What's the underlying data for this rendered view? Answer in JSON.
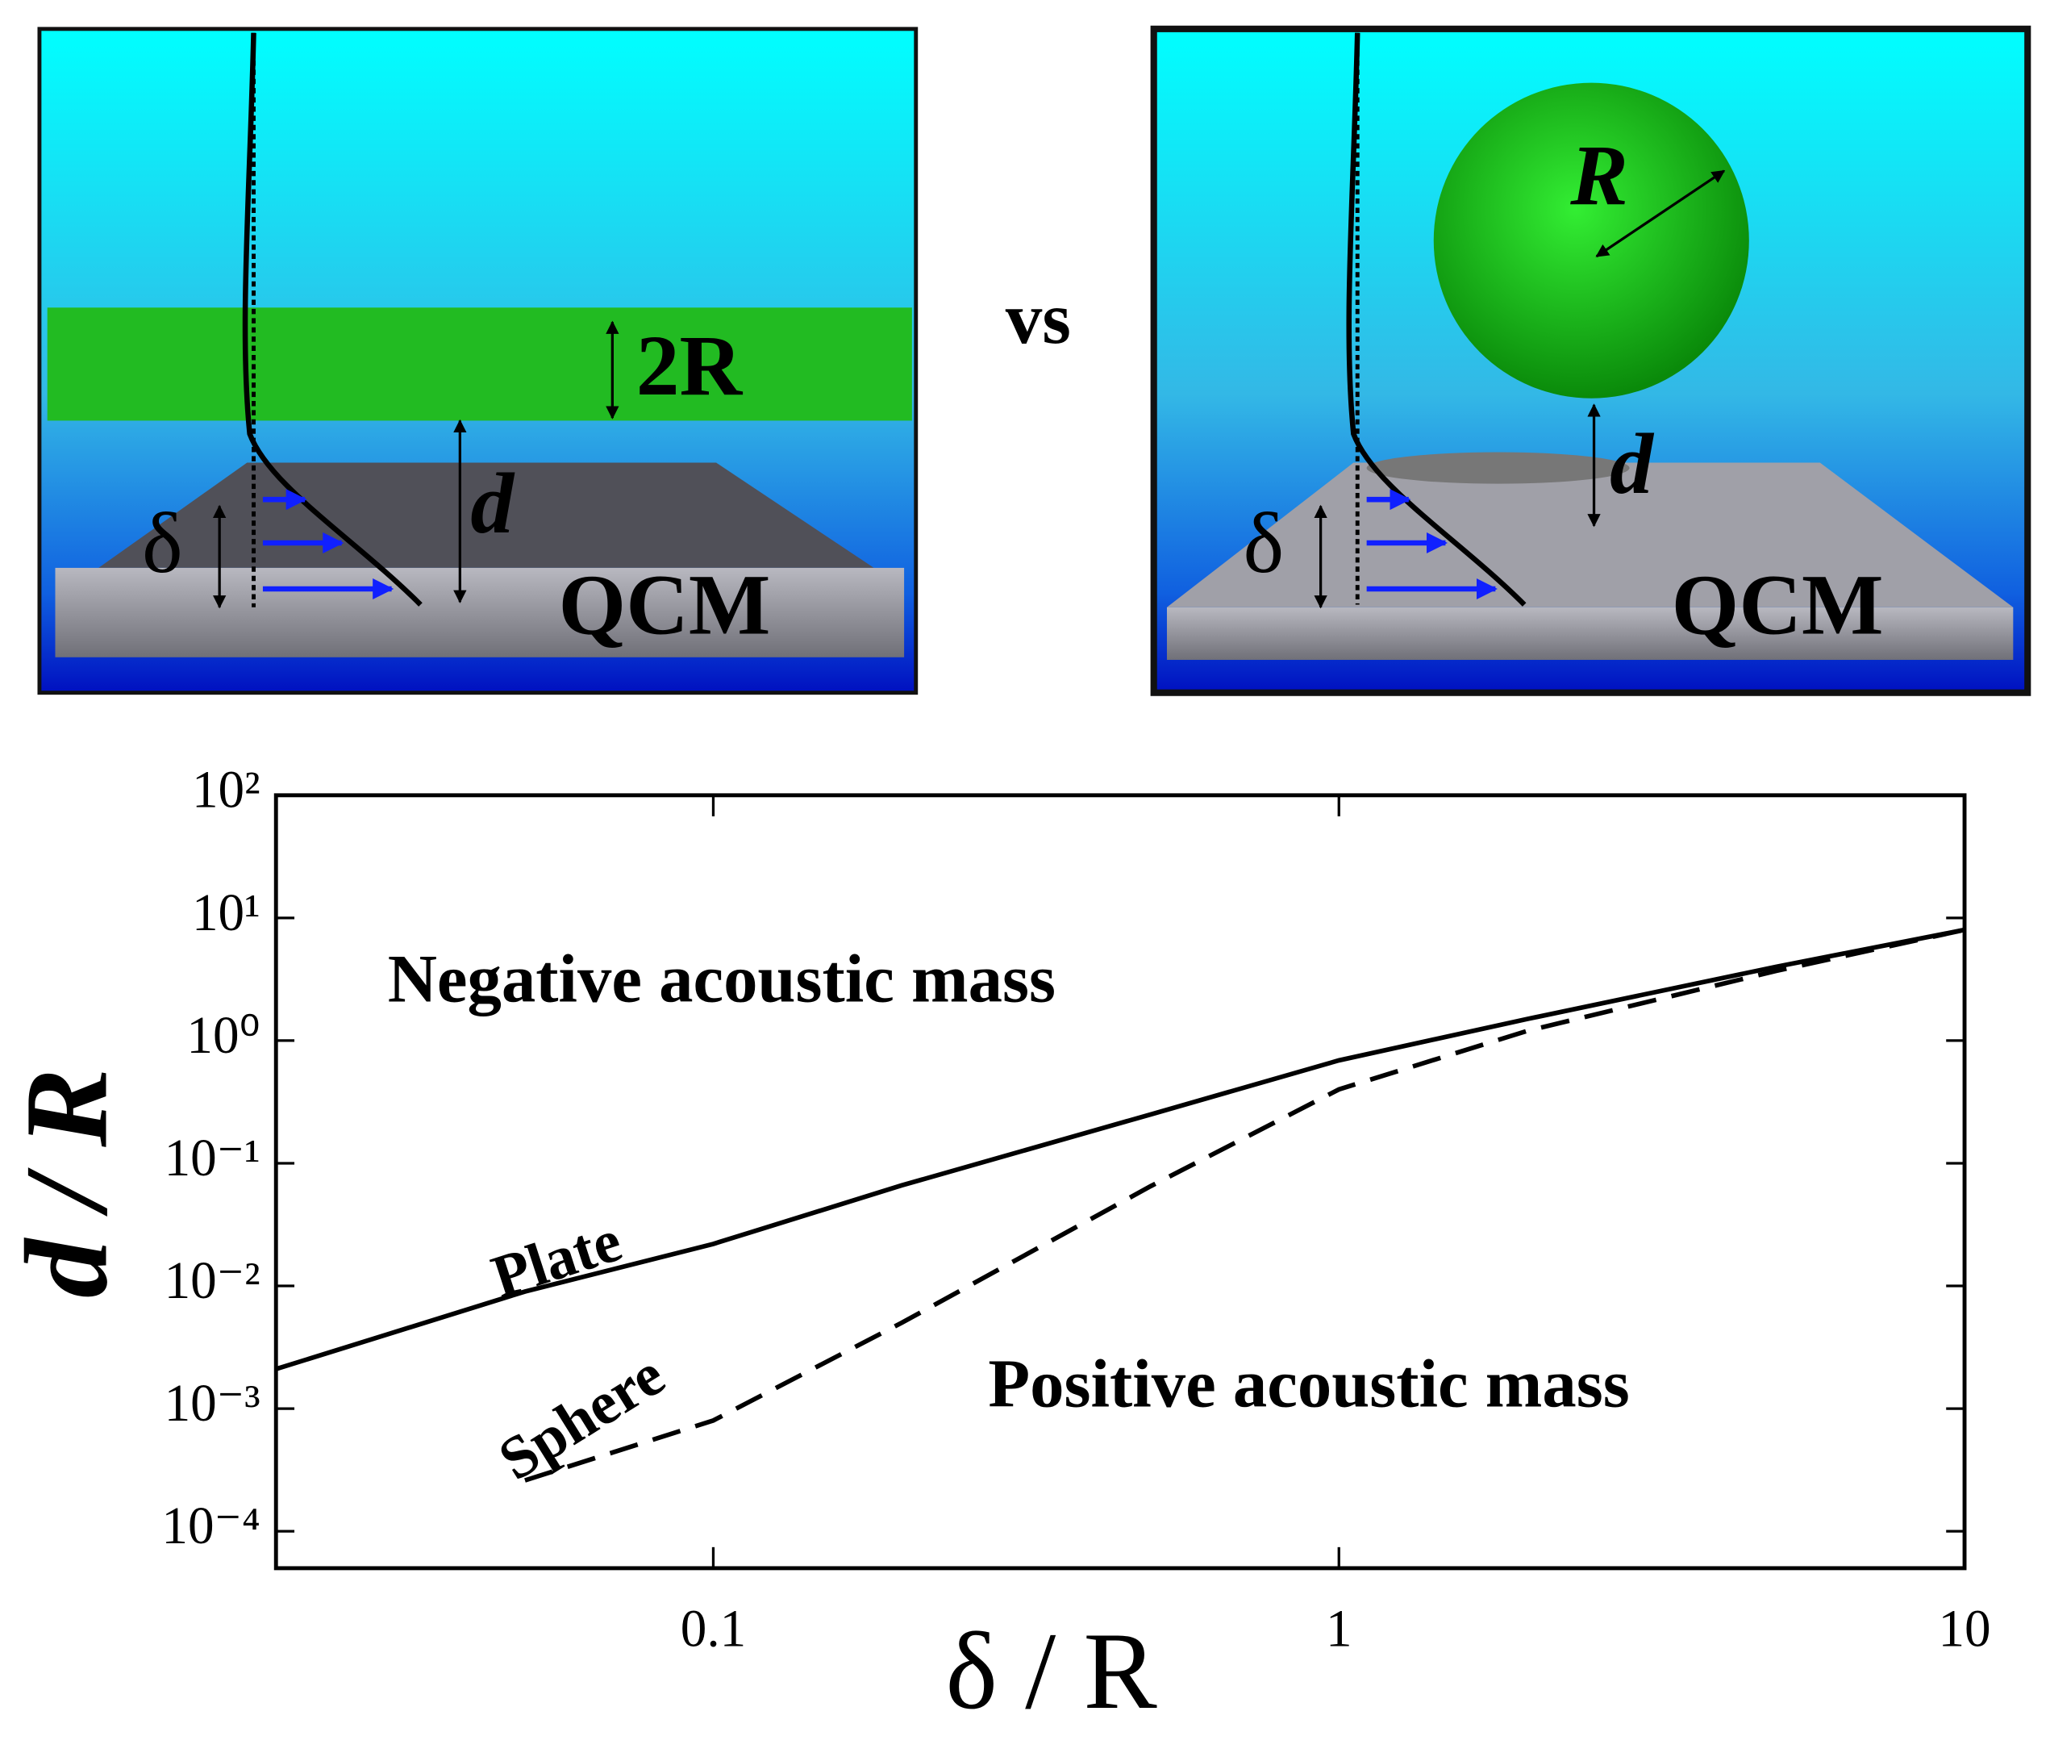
{
  "diagrams": {
    "left": {
      "thickness_label": "2R",
      "distance_label": "d",
      "penetration_label": "δ",
      "sensor_label": "QCM"
    },
    "vs": "vs",
    "right": {
      "radius_label": "R",
      "distance_label": "d",
      "penetration_label": "δ",
      "sensor_label": "QCM"
    }
  },
  "chart_data": {
    "type": "line",
    "x_label": "δ / R",
    "y_label": "d / R",
    "x": [
      0.02,
      0.05,
      0.1,
      0.2,
      0.5,
      1,
      2,
      5,
      10
    ],
    "series": [
      {
        "name": "Plate",
        "color": "#000000",
        "dash": false,
        "values": [
          0.0021,
          0.009,
          0.022,
          0.066,
          0.25,
          0.69,
          1.5,
          4,
          8
        ]
      },
      {
        "name": "Sphere",
        "color": "#000000",
        "dash": true,
        "values": [
          null,
          0.00026,
          0.0008,
          0.005,
          0.065,
          0.4,
          1.2,
          3.7,
          8
        ]
      }
    ],
    "annotations": [
      "Negative acoustic mass",
      "Positive acoustic mass"
    ],
    "xlog": true,
    "ylog": true,
    "xlim": [
      0.02,
      10
    ],
    "ylim": [
      5e-05,
      100
    ],
    "xticks": [
      0.1,
      1,
      10
    ],
    "yticks": [
      {
        "value": 100,
        "label": "10²"
      },
      {
        "value": 10,
        "label": "10¹"
      },
      {
        "value": 1,
        "label": "10⁰"
      },
      {
        "value": 0.1,
        "label": "10⁻¹"
      },
      {
        "value": 0.01,
        "label": "10⁻²"
      },
      {
        "value": 0.001,
        "label": "10⁻³"
      },
      {
        "value": 0.0001,
        "label": "10⁻⁴"
      }
    ]
  }
}
